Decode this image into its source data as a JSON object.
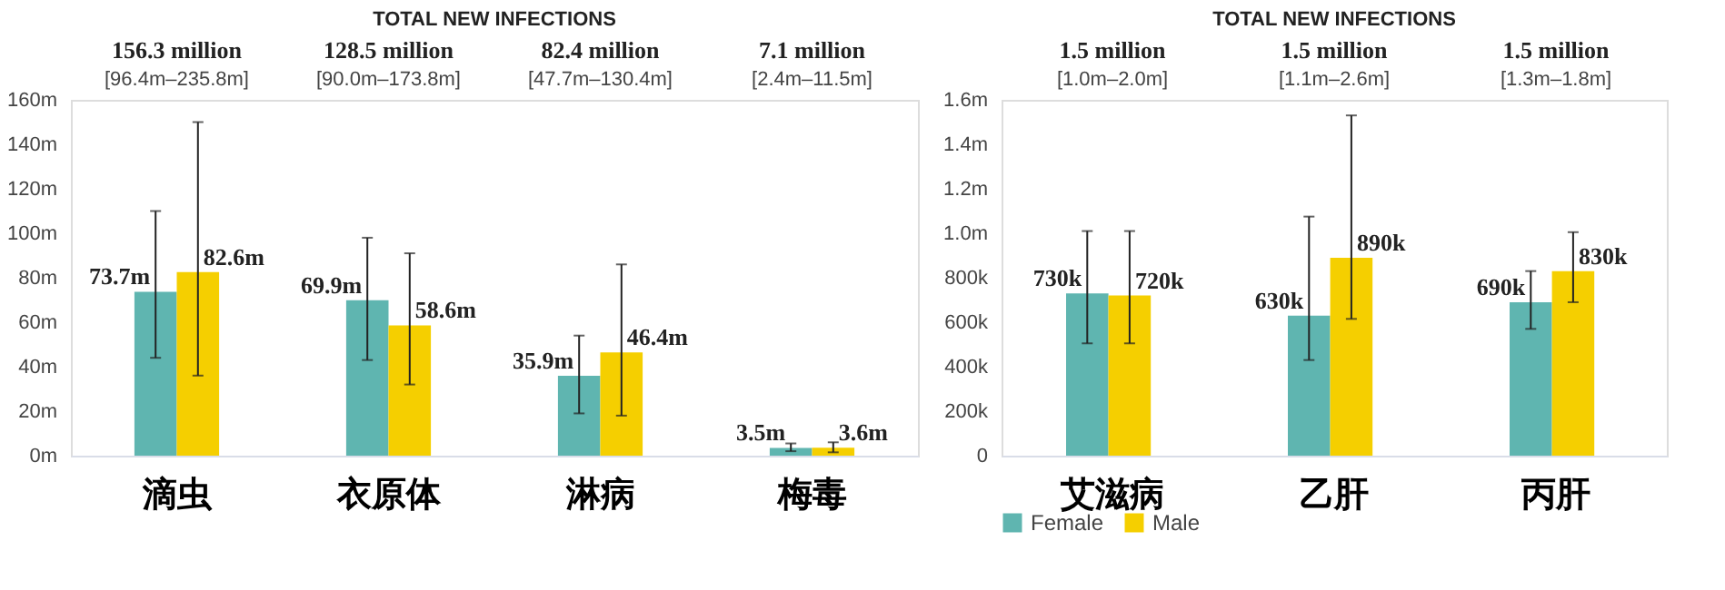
{
  "chart_data": [
    {
      "type": "bar",
      "title": "TOTAL NEW INFECTIONS",
      "categories": [
        "滴虫",
        "衣原体",
        "淋病",
        "梅毒"
      ],
      "series": [
        {
          "color": "#5fb5b0",
          "values": [
            73700000,
            69900000,
            35900000,
            3500000
          ],
          "errors": [
            [
              44000000,
              110000000
            ],
            [
              43000000,
              98000000
            ],
            [
              19000000,
              54000000
            ],
            [
              2000000,
              5500000
            ]
          ],
          "value_labels": [
            "73.7m",
            "69.9m",
            "35.9m",
            "3.5m"
          ]
        },
        {
          "color": "#f5cf00",
          "values": [
            82600000,
            58600000,
            46400000,
            3600000
          ],
          "errors": [
            [
              36000000,
              150000000
            ],
            [
              32000000,
              91000000
            ],
            [
              18000000,
              86000000
            ],
            [
              1500000,
              6000000
            ]
          ],
          "value_labels": [
            "82.6m",
            "58.6m",
            "46.4m",
            "3.6m"
          ]
        }
      ],
      "annotations": [
        "156.3 million",
        "[96.4m–235.8m]",
        "128.5 million",
        "[90.0m–173.8m]",
        "82.4 million",
        "[47.7m–130.4m]",
        "7.1 million",
        "[2.4m–11.5m]"
      ],
      "ylim": [
        0,
        160000000
      ],
      "yticks": [
        {
          "value": 0,
          "label": "0m"
        },
        {
          "value": 20000000,
          "label": "20m"
        },
        {
          "value": 40000000,
          "label": "40m"
        },
        {
          "value": 60000000,
          "label": "60m"
        },
        {
          "value": 80000000,
          "label": "80m"
        },
        {
          "value": 100000000,
          "label": "100m"
        },
        {
          "value": 120000000,
          "label": "120m"
        },
        {
          "value": 140000000,
          "label": "140m"
        },
        {
          "value": 160000000,
          "label": "160m"
        }
      ],
      "legend": false
    },
    {
      "type": "bar",
      "title": "TOTAL NEW INFECTIONS",
      "categories": [
        "艾滋病",
        "乙肝",
        "丙肝"
      ],
      "series": [
        {
          "name": "Female",
          "color": "#5fb5b0",
          "values": [
            730000,
            630000,
            690000
          ],
          "errors": [
            [
              505000,
              1010000
            ],
            [
              430000,
              1075000
            ],
            [
              570000,
              830000
            ]
          ],
          "value_labels": [
            "730k",
            "630k",
            "690k"
          ]
        },
        {
          "name": "Male",
          "color": "#f5cf00",
          "values": [
            720000,
            890000,
            830000
          ],
          "errors": [
            [
              505000,
              1010000
            ],
            [
              615000,
              1530000
            ],
            [
              690000,
              1005000
            ]
          ],
          "value_labels": [
            "720k",
            "890k",
            "830k"
          ]
        }
      ],
      "annotations": [
        "1.5 million",
        "[1.0m–2.0m]",
        "1.5 million",
        "[1.1m–2.6m]",
        "1.5 million",
        "[1.3m–1.8m]"
      ],
      "ylim": [
        0,
        1600000
      ],
      "yticks": [
        0,
        {
          "value": 200000,
          "label": "200k"
        },
        {
          "value": 400000,
          "label": "400k"
        },
        {
          "value": 600000,
          "label": "600k"
        },
        {
          "value": 800000,
          "label": "800k"
        },
        {
          "value": 1000000,
          "label": "1.0m"
        },
        {
          "value": 1200000,
          "label": "1.2m"
        },
        {
          "value": 1400000,
          "label": "1.4m"
        },
        {
          "value": 1600000,
          "label": "1.6m"
        }
      ],
      "legend": "bottom"
    }
  ]
}
